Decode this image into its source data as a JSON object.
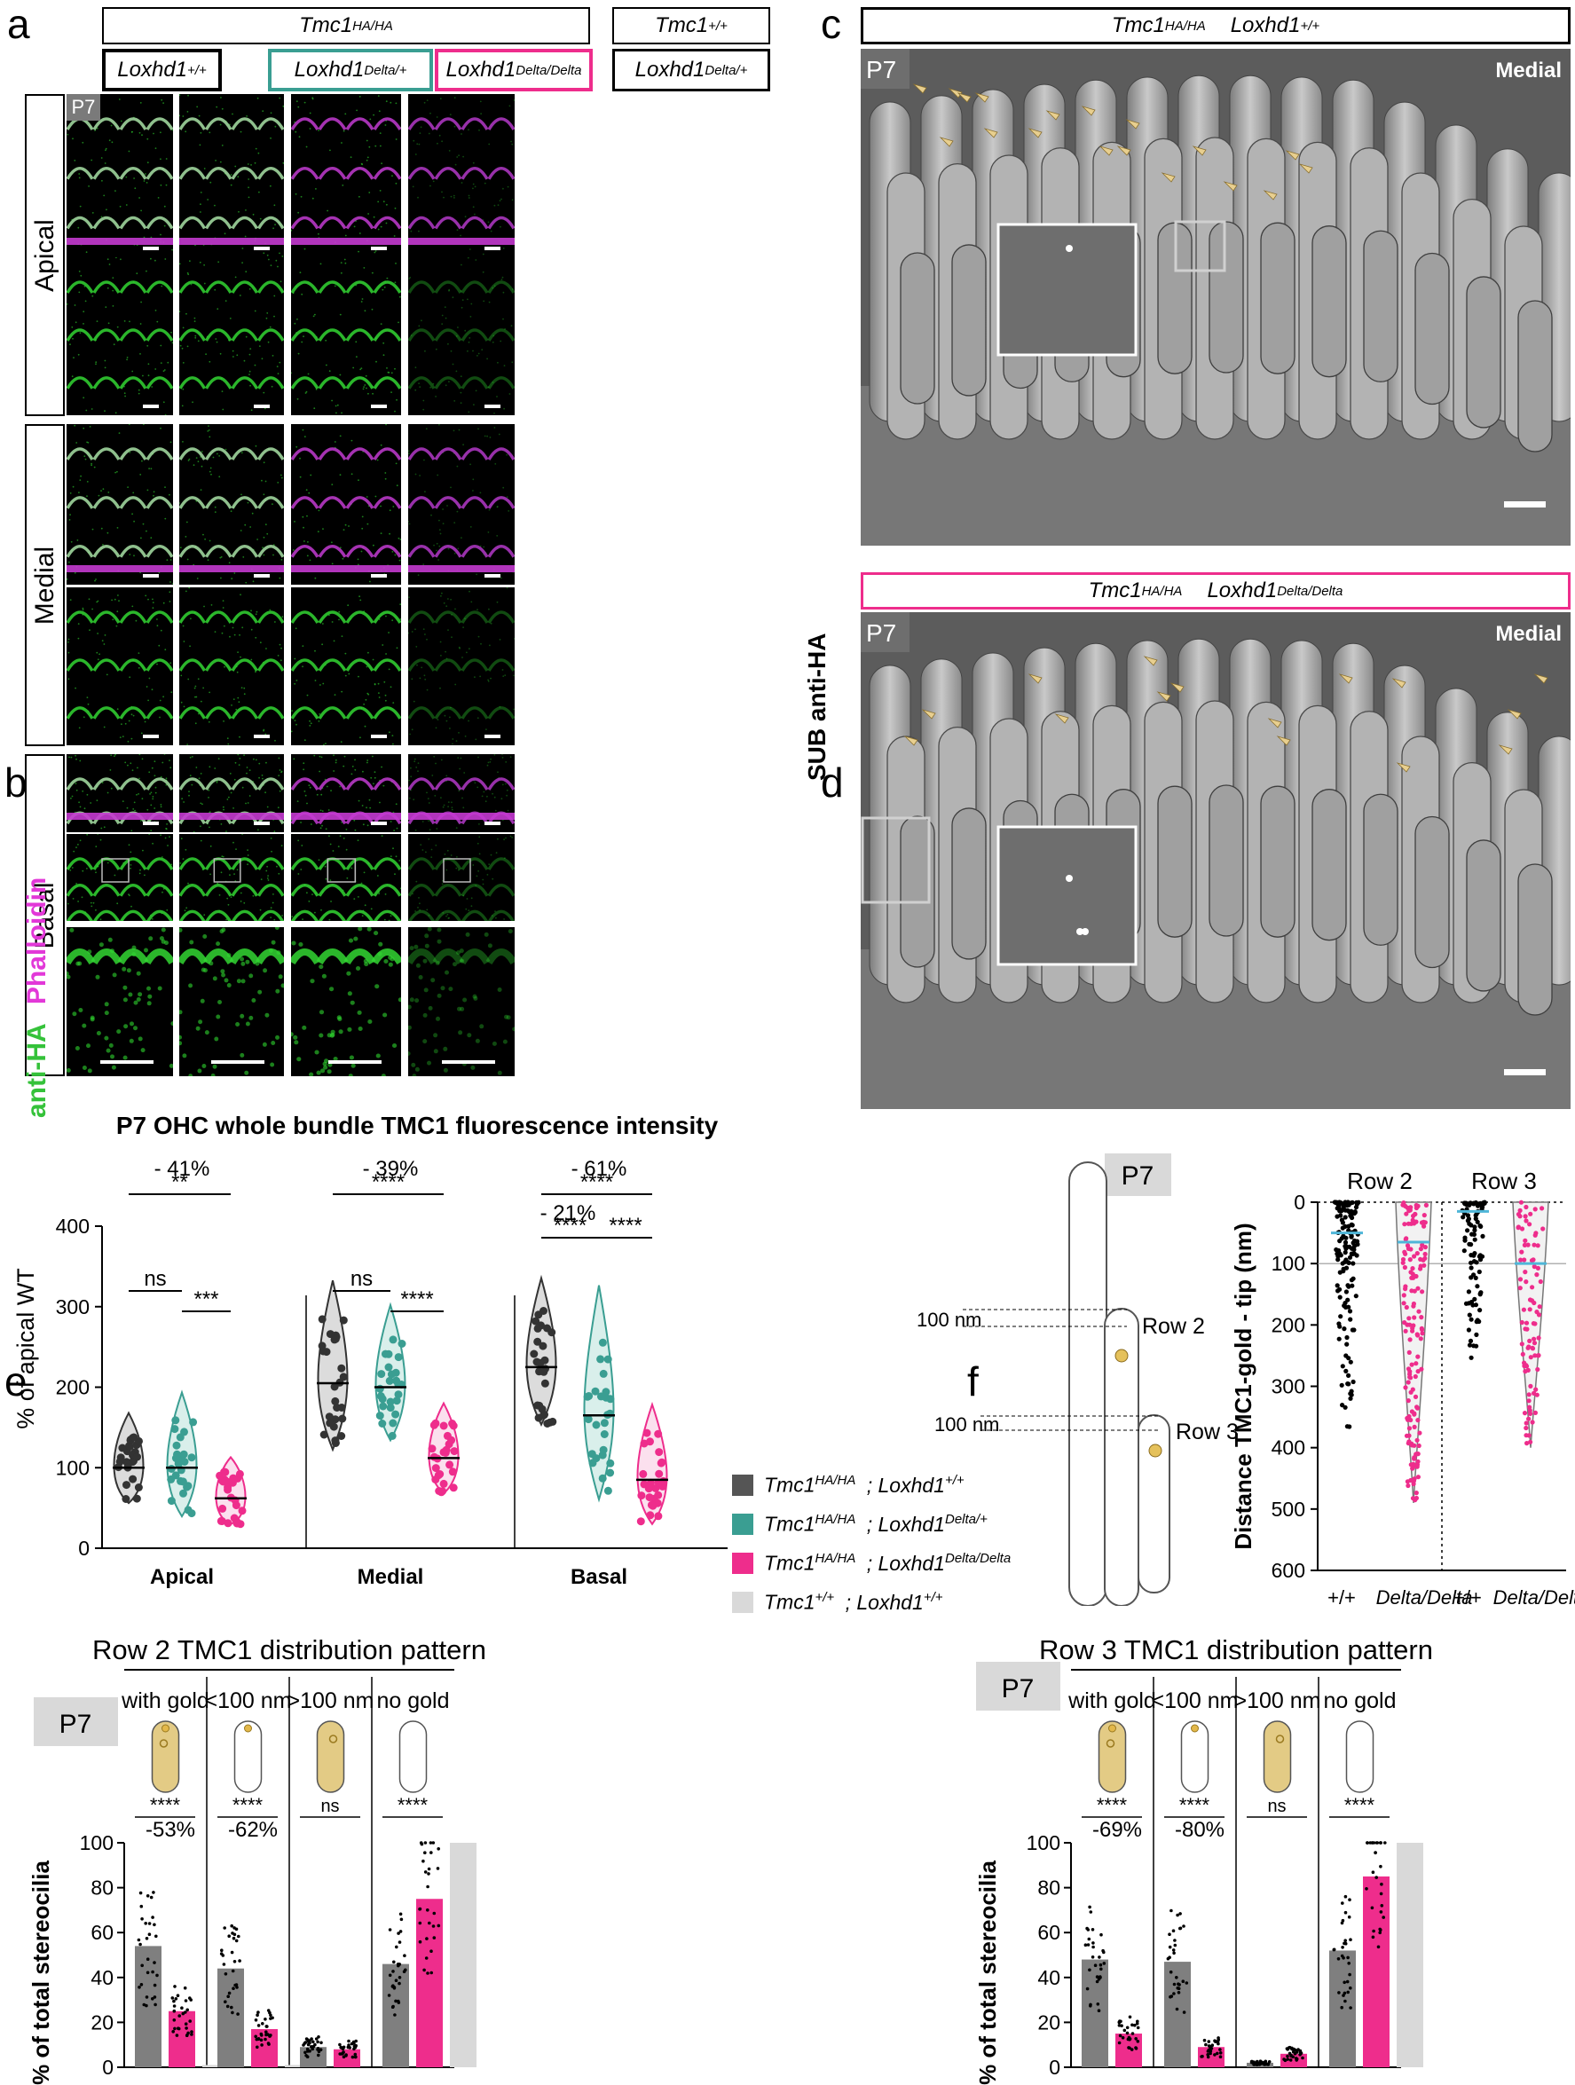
{
  "panel_letters": {
    "a": "a",
    "b": "b",
    "c": "c",
    "d": "d",
    "e": "e",
    "f": "f"
  },
  "panel_a": {
    "header_tmc1_ha": {
      "gene": "Tmc1",
      "allele": "HA/HA"
    },
    "header_tmc1_wt": {
      "gene": "Tmc1",
      "allele": "+/+"
    },
    "columns": [
      {
        "gene": "Loxhd1",
        "allele": "+/+",
        "color": "#000000"
      },
      {
        "gene": "Loxhd1",
        "allele": "Delta/+",
        "color": "#3a9e92"
      },
      {
        "gene": "Loxhd1",
        "allele": "Delta/Delta",
        "color": "#ee2d8c"
      },
      {
        "gene": "Loxhd1",
        "allele": "Delta/+",
        "color": "#000000"
      }
    ],
    "stage": "P7",
    "regions": [
      "Apical",
      "Medial",
      "Basal"
    ],
    "channel_green": "anti-HA",
    "channel_magenta": "Phalloidin"
  },
  "panel_b": {
    "title": "P7 OHC whole bundle TMC1 fluorescence intensity",
    "ylabel": "% of apical WT",
    "yticks": [
      "0",
      "100",
      "200",
      "300",
      "400"
    ],
    "groups": [
      "Apical",
      "Medial",
      "Basal"
    ],
    "annotations": {
      "apical_top_pct": "- 41%",
      "apical_top_sig": "**",
      "apical_ns": "ns",
      "apical_right": "***",
      "medial_top_pct": "- 39%",
      "medial_top_sig": "****",
      "medial_ns": "ns",
      "medial_right": "****",
      "basal_top_pct": "- 61%",
      "basal_top_sig": "****",
      "basal_mid_pct": "- 21%",
      "basal_left": "****",
      "basal_right": "****"
    }
  },
  "legend": [
    {
      "gene1": "Tmc1",
      "allele1": "HA/HA",
      "gene2": "; Loxhd1",
      "allele2": "+/+",
      "color": "#555555"
    },
    {
      "gene1": "Tmc1",
      "allele1": "HA/HA",
      "gene2": "; Loxhd1",
      "allele2": "Delta/+",
      "color": "#3a9e92"
    },
    {
      "gene1": "Tmc1",
      "allele1": "HA/HA",
      "gene2": "; Loxhd1",
      "allele2": "Delta/Delta",
      "color": "#ee2d8c"
    },
    {
      "gene1": "Tmc1",
      "allele1": "+/+",
      "gene2": "; Loxhd1",
      "allele2": "+/+",
      "color": "#d9d9d9"
    }
  ],
  "panel_c": {
    "top_header": {
      "g1": "Tmc1",
      "a1": "HA/HA",
      "g2": "Loxhd1",
      "a2": "+/+"
    },
    "bottom_header": {
      "g1": "Tmc1",
      "a1": "HA/HA",
      "g2": "Loxhd1",
      "a2": "Delta/Delta"
    },
    "stage": "P7",
    "region": "Medial",
    "side_label": "SUB anti-HA"
  },
  "panel_d": {
    "stage": "P7",
    "row2": "Row 2",
    "row3": "Row 3",
    "nm_label_1": "100 nm",
    "nm_label_2": "100 nm",
    "ylabel": "Distance TMC1-gold - tip (nm)",
    "yticks": [
      "0",
      "100",
      "200",
      "300",
      "400",
      "500",
      "600"
    ],
    "xticks": [
      "+/+",
      "Delta/Delta",
      "+/+",
      "Delta/Delta"
    ]
  },
  "panel_e": {
    "title": "Row 2 TMC1 distribution pattern",
    "stage": "P7",
    "columns": [
      "with gold",
      "<100 nm",
      ">100 nm",
      "no gold"
    ],
    "ylabel": "% of total stereocilia",
    "yticks": [
      "0",
      "20",
      "40",
      "60",
      "80",
      "100"
    ],
    "sig": [
      "****",
      "****",
      "ns",
      "****"
    ],
    "pct": [
      "-53%",
      "-62%"
    ]
  },
  "panel_f": {
    "title": "Row 3 TMC1 distribution pattern",
    "stage": "P7",
    "columns": [
      "with gold",
      "<100 nm",
      ">100 nm",
      "no gold"
    ],
    "ylabel": "% of total stereocilia",
    "yticks": [
      "0",
      "20",
      "40",
      "60",
      "80",
      "100"
    ],
    "sig": [
      "****",
      "****",
      "ns",
      "****"
    ],
    "pct": [
      "-69%",
      "-80%"
    ]
  },
  "chart_data": [
    {
      "id": "b",
      "type": "violin",
      "title": "P7 OHC whole bundle TMC1 fluorescence intensity",
      "ylabel": "% of apical WT",
      "ylim": [
        0,
        400
      ],
      "categories": [
        "Apical",
        "Medial",
        "Basal"
      ],
      "series": [
        {
          "name": "Tmc1 HA/HA; Loxhd1 +/+",
          "medians": [
            100,
            205,
            225
          ]
        },
        {
          "name": "Tmc1 HA/HA; Loxhd1 Delta/+",
          "medians": [
            100,
            200,
            165
          ]
        },
        {
          "name": "Tmc1 HA/HA; Loxhd1 Delta/Delta",
          "medians": [
            62,
            112,
            85
          ]
        }
      ]
    },
    {
      "id": "d",
      "type": "scatter",
      "ylabel": "Distance TMC1-gold - tip (nm)",
      "ylim": [
        0,
        600
      ],
      "categories": [
        "Row 2 +/+",
        "Row 2 Delta/Delta",
        "Row 3 +/+",
        "Row 3 Delta/Delta"
      ],
      "medians": [
        50,
        65,
        15,
        100
      ],
      "max": [
        370,
        490,
        260,
        400
      ]
    },
    {
      "id": "e",
      "type": "bar",
      "title": "Row 2 TMC1 distribution pattern",
      "ylabel": "% of total stereocilia",
      "ylim": [
        0,
        100
      ],
      "categories": [
        "with gold",
        "<100 nm",
        ">100 nm",
        "no gold"
      ],
      "series": [
        {
          "name": "+/+",
          "values": [
            54,
            44,
            9,
            46
          ]
        },
        {
          "name": "Delta/Delta",
          "values": [
            25,
            17,
            8,
            75
          ]
        },
        {
          "name": "Tmc1 +/+",
          "values": [
            1,
            1,
            0,
            100
          ]
        }
      ]
    },
    {
      "id": "f",
      "type": "bar",
      "title": "Row 3 TMC1 distribution pattern",
      "ylabel": "% of total stereocilia",
      "ylim": [
        0,
        100
      ],
      "categories": [
        "with gold",
        "<100 nm",
        ">100 nm",
        "no gold"
      ],
      "series": [
        {
          "name": "+/+",
          "values": [
            48,
            47,
            2,
            52
          ]
        },
        {
          "name": "Delta/Delta",
          "values": [
            15,
            9,
            6,
            85
          ]
        },
        {
          "name": "Tmc1 +/+",
          "values": [
            0,
            0,
            0,
            100
          ]
        }
      ]
    }
  ]
}
